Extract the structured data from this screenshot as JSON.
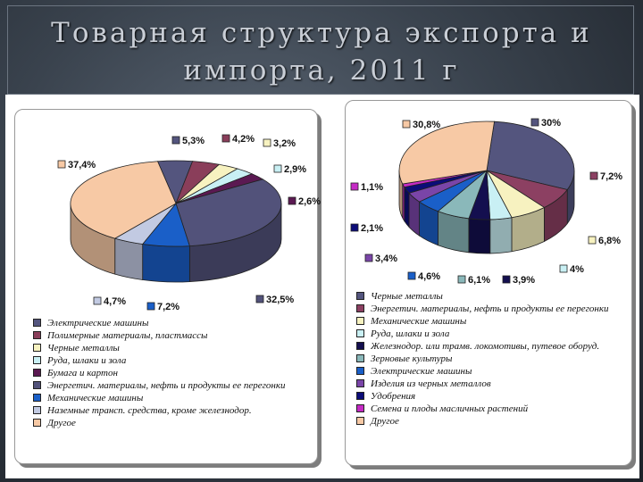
{
  "title": "Товарная структура экспорта и импорта, 2011 г",
  "colors": {
    "electric_machines": "#54557e",
    "polymers": "#8a3e5a",
    "ferrous": "#f7f2c0",
    "ores": "#c9f0f4",
    "paper": "#5b1952",
    "energy": "#52527a",
    "mech_machines": "#1a5fc8",
    "vehicles": "#c2cae2",
    "other": "#f7c9a5",
    "energy_import": "#8c4062",
    "railway": "#140f4f",
    "grain": "#8ab8ba",
    "ferrous_products": "#7a45a8",
    "fertilizers": "#0c0c78",
    "seeds": "#c52bc5"
  },
  "chart_data": [
    {
      "type": "pie",
      "name": "export",
      "slices": [
        {
          "label": "Электрические машины",
          "value": 5.3,
          "text": "5,3%",
          "color": "#54557e"
        },
        {
          "label": "Полимерные материалы, пластмассы",
          "value": 4.2,
          "text": "4,2%",
          "color": "#8a3e5a"
        },
        {
          "label": "Черные металлы",
          "value": 3.2,
          "text": "3,2%",
          "color": "#f7f2c0"
        },
        {
          "label": "Руда, шлаки и зола",
          "value": 2.9,
          "text": "2,9%",
          "color": "#c9f0f4"
        },
        {
          "label": "Бумага и картон",
          "value": 2.6,
          "text": "2,6%",
          "color": "#5b1952"
        },
        {
          "label": "Энергетич. материалы, нефть и продукты ее перегонки",
          "value": 32.5,
          "text": "32,5%",
          "color": "#52527a"
        },
        {
          "label": "Механические машины",
          "value": 7.2,
          "text": "7,2%",
          "color": "#1a5fc8"
        },
        {
          "label": "Наземные трансп. средства, кроме железнодор.",
          "value": 4.7,
          "text": "4,7%",
          "color": "#c2cae2"
        },
        {
          "label": "Другое",
          "value": 37.4,
          "text": "37,4%",
          "color": "#f7c9a5"
        }
      ]
    },
    {
      "type": "pie",
      "name": "import",
      "slices": [
        {
          "label": "Черные металлы",
          "value": 30,
          "text": "30%",
          "color": "#54557e"
        },
        {
          "label": "Энергетич. материалы, нефть и продукты ее перегонки",
          "value": 7.2,
          "text": "7,2%",
          "color": "#8c4062"
        },
        {
          "label": "Механические машины",
          "value": 6.8,
          "text": "6,8%",
          "color": "#f7f2c0"
        },
        {
          "label": "Руда, шлаки и зола",
          "value": 4,
          "text": "4%",
          "color": "#c9f0f4"
        },
        {
          "label": "Железнодор. или трамв. локомотивы, путевое оборуд.",
          "value": 3.9,
          "text": "3,9%",
          "color": "#140f4f"
        },
        {
          "label": "Зерновые культуры",
          "value": 6.1,
          "text": "6,1%",
          "color": "#8ab8ba"
        },
        {
          "label": "Электрические машины",
          "value": 4.6,
          "text": "4,6%",
          "color": "#1a5fc8"
        },
        {
          "label": "Изделия из черных металлов",
          "value": 3.4,
          "text": "3,4%",
          "color": "#7a45a8"
        },
        {
          "label": "Удобрения",
          "value": 2.1,
          "text": "2,1%",
          "color": "#0c0c78"
        },
        {
          "label": "Семена и плоды масличных растений",
          "value": 1.1,
          "text": "1,1%",
          "color": "#c52bc5"
        },
        {
          "label": "Другое",
          "value": 30.8,
          "text": "30,8%",
          "color": "#f7c9a5"
        }
      ]
    }
  ]
}
